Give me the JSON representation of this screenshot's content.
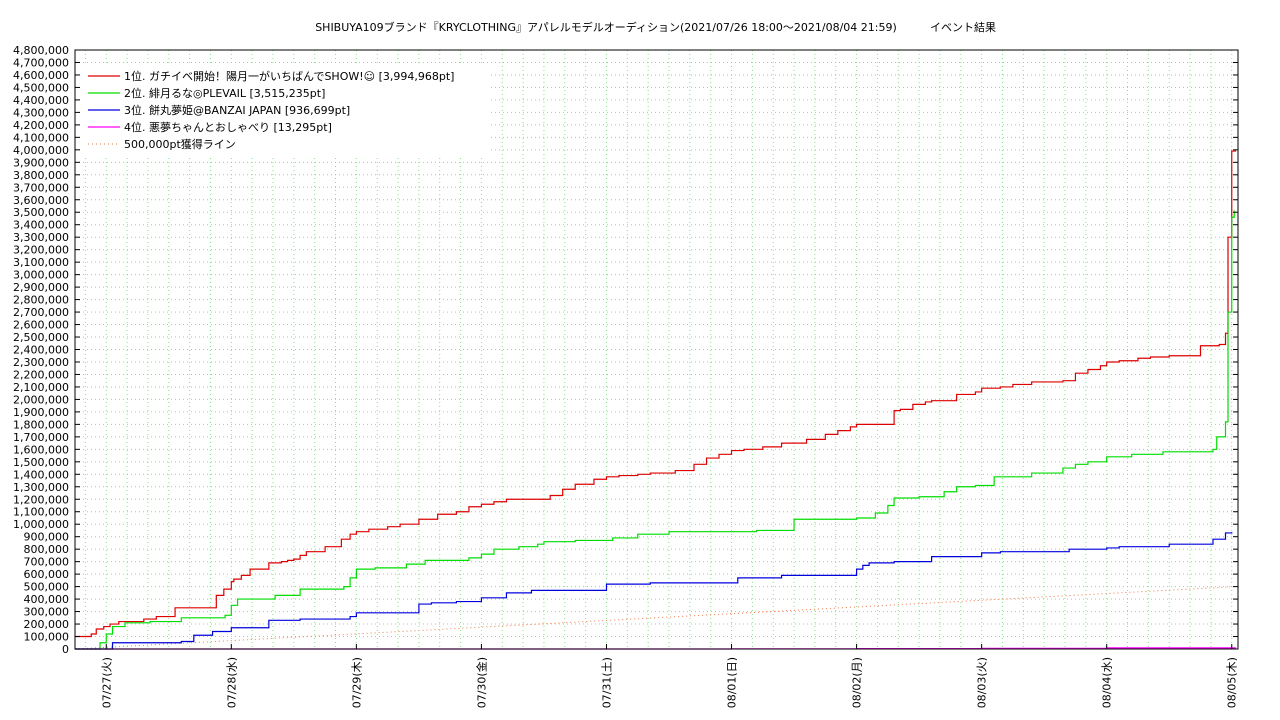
{
  "chart_data": {
    "type": "line",
    "title": "SHIBUYA109ブランド『KRYCLOTHING』アパレルモデルオーディション(2021/07/26 18:00～2021/08/04 21:59)",
    "subtitle": "イベント結果",
    "xlabel": "",
    "ylabel": "",
    "ylim": [
      0,
      4800000
    ],
    "xlim": [
      -0.25,
      9.05
    ],
    "y_ticks": [
      "0",
      "100,000",
      "200,000",
      "300,000",
      "400,000",
      "500,000",
      "600,000",
      "700,000",
      "800,000",
      "900,000",
      "1,000,000",
      "1,100,000",
      "1,200,000",
      "1,300,000",
      "1,400,000",
      "1,500,000",
      "1,600,000",
      "1,700,000",
      "1,800,000",
      "1,900,000",
      "2,000,000",
      "2,100,000",
      "2,200,000",
      "2,300,000",
      "2,400,000",
      "2,500,000",
      "2,600,000",
      "2,700,000",
      "2,800,000",
      "2,900,000",
      "3,000,000",
      "3,100,000",
      "3,200,000",
      "3,300,000",
      "3,400,000",
      "3,500,000",
      "3,600,000",
      "3,700,000",
      "3,800,000",
      "3,900,000",
      "4,000,000",
      "4,100,000",
      "4,200,000",
      "4,300,000",
      "4,400,000",
      "4,500,000",
      "4,600,000",
      "4,700,000",
      "4,800,000"
    ],
    "x_ticks": [
      "07/27(火)",
      "07/28(水)",
      "07/29(木)",
      "07/30(金)",
      "07/31(土)",
      "08/01(日)",
      "08/02(月)",
      "08/03(火)",
      "08/04(水)",
      "08/05(木)"
    ],
    "grid": true,
    "legend_position": "top-left",
    "series": [
      {
        "name": "1位. ガチイベ開始！陽月一がいちばんでSHOW!☺ [3,994,968pt]",
        "color": "#dd0000",
        "style": "step",
        "x": [
          -0.25,
          -0.12,
          -0.08,
          -0.02,
          0.03,
          0.1,
          0.3,
          0.4,
          0.55,
          0.8,
          0.88,
          0.94,
          1.0,
          1.02,
          1.08,
          1.15,
          1.3,
          1.4,
          1.45,
          1.5,
          1.55,
          1.6,
          1.75,
          1.88,
          1.95,
          2.0,
          2.1,
          2.25,
          2.35,
          2.5,
          2.65,
          2.8,
          2.9,
          3.0,
          3.1,
          3.2,
          3.35,
          3.55,
          3.65,
          3.75,
          3.9,
          4.0,
          4.1,
          4.25,
          4.35,
          4.55,
          4.7,
          4.8,
          4.9,
          5.0,
          5.1,
          5.25,
          5.4,
          5.6,
          5.75,
          5.85,
          5.95,
          6.0,
          6.1,
          6.3,
          6.35,
          6.45,
          6.55,
          6.6,
          6.8,
          6.95,
          7.0,
          7.15,
          7.25,
          7.4,
          7.65,
          7.75,
          7.85,
          7.95,
          8.0,
          8.1,
          8.25,
          8.35,
          8.5,
          8.75,
          8.9,
          8.95,
          8.97,
          9.0,
          9.03
        ],
        "values": [
          100000,
          120000,
          160000,
          180000,
          200000,
          220000,
          240000,
          260000,
          330000,
          330000,
          430000,
          480000,
          540000,
          560000,
          590000,
          640000,
          690000,
          700000,
          710000,
          720000,
          750000,
          780000,
          820000,
          880000,
          920000,
          940000,
          960000,
          980000,
          1000000,
          1040000,
          1080000,
          1100000,
          1140000,
          1160000,
          1180000,
          1200000,
          1200000,
          1230000,
          1280000,
          1320000,
          1360000,
          1380000,
          1390000,
          1400000,
          1410000,
          1430000,
          1480000,
          1530000,
          1560000,
          1590000,
          1600000,
          1620000,
          1650000,
          1680000,
          1720000,
          1750000,
          1780000,
          1800000,
          1800000,
          1910000,
          1920000,
          1960000,
          1980000,
          1990000,
          2040000,
          2060000,
          2090000,
          2100000,
          2120000,
          2140000,
          2150000,
          2210000,
          2240000,
          2270000,
          2300000,
          2310000,
          2330000,
          2340000,
          2350000,
          2430000,
          2440000,
          2530000,
          3300000,
          3990000,
          3994968
        ]
      },
      {
        "name": "2位. 緋月るな◎PLEVAIL [3,515,235pt]",
        "color": "#00dd00",
        "style": "step",
        "x": [
          -0.25,
          -0.1,
          -0.05,
          0.0,
          0.05,
          0.15,
          0.35,
          0.6,
          0.95,
          1.0,
          1.05,
          1.35,
          1.55,
          1.9,
          1.95,
          2.0,
          2.15,
          2.4,
          2.55,
          2.9,
          3.0,
          3.1,
          3.3,
          3.45,
          3.5,
          3.75,
          4.05,
          4.25,
          4.5,
          5.0,
          5.2,
          5.5,
          6.0,
          6.15,
          6.25,
          6.3,
          6.5,
          6.7,
          6.8,
          6.95,
          7.1,
          7.4,
          7.65,
          7.75,
          7.85,
          8.0,
          8.2,
          8.45,
          8.85,
          8.88,
          8.95,
          8.97,
          9.0,
          9.02
        ],
        "values": [
          0,
          0,
          50000,
          120000,
          180000,
          210000,
          220000,
          250000,
          270000,
          350000,
          400000,
          430000,
          480000,
          500000,
          570000,
          640000,
          650000,
          680000,
          710000,
          730000,
          760000,
          800000,
          820000,
          840000,
          860000,
          870000,
          890000,
          920000,
          940000,
          940000,
          950000,
          1040000,
          1050000,
          1090000,
          1150000,
          1210000,
          1220000,
          1260000,
          1300000,
          1310000,
          1380000,
          1410000,
          1450000,
          1480000,
          1500000,
          1540000,
          1560000,
          1580000,
          1600000,
          1700000,
          1820000,
          2700000,
          3460000,
          3515235
        ]
      },
      {
        "name": "3位. 餅丸夢姫@BANZAI JAPAN [936,699pt]",
        "color": "#0000dd",
        "style": "step",
        "x": [
          -0.25,
          0.0,
          0.05,
          0.6,
          0.7,
          0.85,
          1.0,
          1.3,
          1.55,
          1.95,
          2.0,
          2.5,
          2.6,
          2.8,
          3.0,
          3.2,
          3.4,
          4.0,
          4.35,
          5.0,
          5.05,
          5.4,
          5.95,
          6.0,
          6.05,
          6.1,
          6.3,
          6.6,
          7.0,
          7.15,
          7.5,
          7.7,
          8.0,
          8.1,
          8.5,
          8.85,
          8.95,
          9.0
        ],
        "values": [
          0,
          0,
          50000,
          60000,
          110000,
          140000,
          170000,
          230000,
          240000,
          260000,
          290000,
          360000,
          370000,
          380000,
          410000,
          450000,
          470000,
          520000,
          530000,
          530000,
          570000,
          590000,
          590000,
          640000,
          670000,
          690000,
          700000,
          740000,
          770000,
          780000,
          780000,
          800000,
          810000,
          820000,
          840000,
          880000,
          930000,
          936699
        ]
      },
      {
        "name": "4位. 悪夢ちゃんとおしゃべり [13,295pt]",
        "color": "#ff00ff",
        "style": "step",
        "x": [
          -0.25,
          4.0,
          5.0,
          6.0,
          7.0,
          8.0,
          9.03
        ],
        "values": [
          0,
          0,
          1000,
          3000,
          5000,
          9000,
          13295
        ]
      },
      {
        "name": "500,000pt獲得ライン",
        "color": "#e87a4a",
        "style": "dotted",
        "x": [
          -0.25,
          9.03
        ],
        "values": [
          0,
          500000
        ]
      }
    ]
  }
}
